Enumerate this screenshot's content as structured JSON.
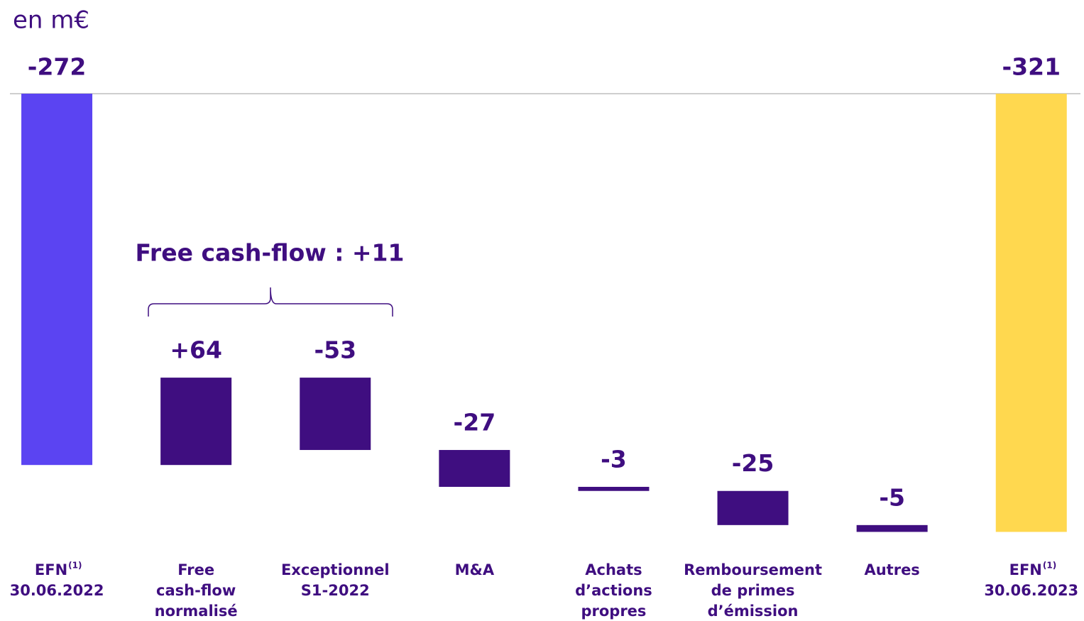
{
  "chart_data": {
    "type": "waterfall",
    "subtitle": "en m€",
    "annotation": "Free cash-flow : +11",
    "categories": [
      [
        "EFN",
        "30.06.2022"
      ],
      [
        "Free",
        "cash-flow",
        "normalisé"
      ],
      [
        "Exceptionnel",
        "S1-2022"
      ],
      [
        "M&A"
      ],
      [
        "Achats",
        "d’actions",
        "propres"
      ],
      [
        "Remboursement",
        "de primes",
        "d’émission"
      ],
      [
        "Autres"
      ],
      [
        "EFN",
        "30.06.2023"
      ]
    ],
    "category_notes": [
      "(1)",
      null,
      null,
      null,
      null,
      null,
      null,
      "(1)"
    ],
    "values": [
      -272,
      64,
      -53,
      -27,
      -3,
      -25,
      -5,
      -321
    ],
    "value_labels": [
      "-272",
      "+64",
      "-53",
      "-27",
      "-3",
      "-25",
      "-5",
      "-321"
    ],
    "measure": [
      "absolute",
      "relative",
      "relative",
      "relative",
      "relative",
      "relative",
      "relative",
      "absolute"
    ],
    "colors": [
      "#5b44f2",
      "#3f0e80",
      "#3f0e80",
      "#3f0e80",
      "#3f0e80",
      "#3f0e80",
      "#3f0e80",
      "#ffd84f"
    ],
    "ylim": [
      -340,
      0
    ]
  }
}
